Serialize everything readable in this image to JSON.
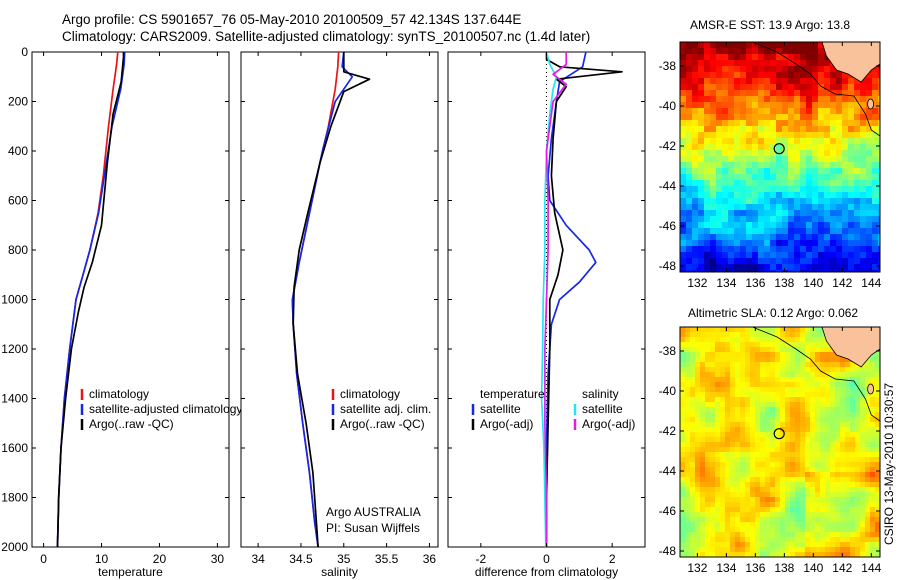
{
  "header": {
    "line1": "Argo profile: CS 5901657_76 05-May-2010 20100509_57 42.134S 137.644E",
    "line2": "Climatology: CARS2009. Satellite-adjusted climatology: synTS_20100507.nc (1.4d later)"
  },
  "maps": [
    {
      "title": "AMSR-E SST: 13.9 Argo: 13.8"
    },
    {
      "title": "Altimetric SLA: 0.12 Argo: 0.062"
    }
  ],
  "credit": "CSIRO 13-May-2010 10:30:57",
  "argo_info": {
    "line1": "Argo AUSTRALIA",
    "line2": "PI: Susan Wijffels"
  },
  "colors": {
    "red": "#e8141a",
    "blue": "#1428e8",
    "black": "#000000",
    "cyan": "#24e4f4",
    "magenta": "#e41ce4"
  },
  "chart_data": [
    {
      "type": "line",
      "xlabel": "temperature",
      "xlim": [
        -2,
        32
      ],
      "xticks": [
        0,
        10,
        20,
        30
      ],
      "ylim": [
        2000,
        0
      ],
      "yticks": [
        0,
        200,
        400,
        600,
        800,
        1000,
        1200,
        1400,
        1600,
        1800,
        2000
      ],
      "legend": [
        "climatology",
        "satellite-adjusted climatology",
        "Argo(..raw -QC)"
      ],
      "series": [
        {
          "name": "climatology",
          "color": "red",
          "points": [
            [
              12.8,
              0
            ],
            [
              12.6,
              50
            ],
            [
              12.0,
              150
            ],
            [
              11.2,
              300
            ],
            [
              10.3,
              500
            ],
            [
              9.4,
              650
            ],
            [
              8.0,
              800
            ],
            [
              6.8,
              900
            ],
            [
              5.6,
              1000
            ],
            [
              4.5,
              1200
            ],
            [
              3.6,
              1400
            ],
            [
              3.0,
              1600
            ],
            [
              2.6,
              1800
            ],
            [
              2.4,
              2000
            ]
          ]
        },
        {
          "name": "satellite-adjusted climatology",
          "color": "blue",
          "points": [
            [
              14.0,
              0
            ],
            [
              13.9,
              50
            ],
            [
              13.3,
              150
            ],
            [
              11.8,
              300
            ],
            [
              10.5,
              500
            ],
            [
              9.5,
              650
            ],
            [
              8.0,
              800
            ],
            [
              6.8,
              900
            ],
            [
              5.6,
              1000
            ],
            [
              4.5,
              1200
            ],
            [
              3.6,
              1400
            ],
            [
              3.0,
              1600
            ],
            [
              2.6,
              1800
            ],
            [
              2.4,
              2000
            ]
          ]
        },
        {
          "name": "Argo(..raw -QC)",
          "color": "black",
          "points": [
            [
              13.8,
              0
            ],
            [
              13.8,
              20
            ],
            [
              13.4,
              120
            ],
            [
              12.0,
              250
            ],
            [
              11.0,
              450
            ],
            [
              10.0,
              700
            ],
            [
              8.4,
              850
            ],
            [
              7.0,
              950
            ],
            [
              6.0,
              1050
            ],
            [
              4.8,
              1200
            ],
            [
              3.8,
              1400
            ],
            [
              3.0,
              1600
            ],
            [
              2.6,
              1800
            ],
            [
              2.4,
              2000
            ]
          ]
        }
      ]
    },
    {
      "type": "line",
      "xlabel": "salinity",
      "xlim": [
        33.8,
        36.1
      ],
      "xticks": [
        34,
        34.5,
        35,
        35.5,
        36
      ],
      "xticklabels": [
        "34",
        "34.5",
        "35",
        "35.5",
        "36"
      ],
      "ylim": [
        2000,
        0
      ],
      "yticks": [
        0,
        200,
        400,
        600,
        800,
        1000,
        1200,
        1400,
        1600,
        1800,
        2000
      ],
      "legend": [
        "climatology",
        "satellite adj. clim.",
        "Argo(..raw -QC)"
      ],
      "series": [
        {
          "name": "climatology",
          "color": "red",
          "points": [
            [
              34.94,
              0
            ],
            [
              34.93,
              60
            ],
            [
              34.9,
              150
            ],
            [
              34.82,
              300
            ],
            [
              34.72,
              450
            ],
            [
              34.6,
              650
            ],
            [
              34.48,
              850
            ],
            [
              34.4,
              1000
            ],
            [
              34.41,
              1100
            ],
            [
              34.45,
              1300
            ],
            [
              34.52,
              1500
            ],
            [
              34.6,
              1700
            ],
            [
              34.66,
              1900
            ],
            [
              34.7,
              2000
            ]
          ]
        },
        {
          "name": "satellite adj. clim.",
          "color": "blue",
          "points": [
            [
              35.0,
              0
            ],
            [
              34.98,
              60
            ],
            [
              35.1,
              100
            ],
            [
              34.9,
              200
            ],
            [
              34.75,
              400
            ],
            [
              34.6,
              650
            ],
            [
              34.48,
              850
            ],
            [
              34.4,
              1000
            ],
            [
              34.41,
              1100
            ],
            [
              34.45,
              1300
            ],
            [
              34.52,
              1500
            ],
            [
              34.6,
              1700
            ],
            [
              34.66,
              1900
            ],
            [
              34.7,
              2000
            ]
          ]
        },
        {
          "name": "Argo(..raw -QC)",
          "color": "black",
          "points": [
            [
              35.0,
              0
            ],
            [
              35.0,
              80
            ],
            [
              35.3,
              110
            ],
            [
              35.0,
              160
            ],
            [
              34.85,
              300
            ],
            [
              34.72,
              450
            ],
            [
              34.58,
              650
            ],
            [
              34.48,
              800
            ],
            [
              34.42,
              950
            ],
            [
              34.41,
              1100
            ],
            [
              34.46,
              1300
            ],
            [
              34.56,
              1500
            ],
            [
              34.64,
              1700
            ],
            [
              34.68,
              1900
            ],
            [
              34.7,
              2000
            ]
          ]
        }
      ]
    },
    {
      "type": "line",
      "xlabel": "difference from climatology",
      "xlim": [
        -3.0,
        3.0
      ],
      "xticks": [
        -2,
        0,
        2
      ],
      "ylim": [
        2000,
        0
      ],
      "yticks": [
        0,
        200,
        400,
        600,
        800,
        1000,
        1200,
        1400,
        1600,
        1800,
        2000
      ],
      "legend_left_title": "temperature",
      "legend_right_title": "salinity",
      "legend": [
        "satellite",
        "Argo(-adj)",
        "satellite",
        "Argo(-adj)"
      ],
      "series": [
        {
          "name": "temperature satellite",
          "color": "blue",
          "points": [
            [
              1.2,
              0
            ],
            [
              1.1,
              60
            ],
            [
              0.4,
              120
            ],
            [
              0.3,
              200
            ],
            [
              0.15,
              350
            ],
            [
              0.05,
              500
            ],
            [
              0.1,
              600
            ],
            [
              0.6,
              700
            ],
            [
              1.3,
              800
            ],
            [
              1.5,
              850
            ],
            [
              1.0,
              930
            ],
            [
              0.4,
              1000
            ],
            [
              0.15,
              1100
            ],
            [
              0.05,
              1300
            ],
            [
              0.0,
              1600
            ],
            [
              0.0,
              2000
            ]
          ]
        },
        {
          "name": "temperature Argo(-adj)",
          "color": "black",
          "points": [
            [
              0.0,
              0
            ],
            [
              0.0,
              30
            ],
            [
              0.4,
              60
            ],
            [
              2.3,
              80
            ],
            [
              0.3,
              110
            ],
            [
              0.6,
              140
            ],
            [
              0.3,
              200
            ],
            [
              0.2,
              350
            ],
            [
              0.15,
              500
            ],
            [
              0.25,
              650
            ],
            [
              0.5,
              800
            ],
            [
              0.35,
              900
            ],
            [
              0.1,
              1000
            ],
            [
              0.1,
              1200
            ],
            [
              0.05,
              1500
            ],
            [
              0.0,
              1800
            ],
            [
              0.0,
              2000
            ]
          ]
        },
        {
          "name": "salinity satellite",
          "color": "cyan",
          "points": [
            [
              0.0,
              0
            ],
            [
              0.1,
              50
            ],
            [
              0.3,
              100
            ],
            [
              0.2,
              150
            ],
            [
              0.1,
              250
            ],
            [
              0.0,
              400
            ],
            [
              -0.05,
              600
            ],
            [
              -0.05,
              800
            ],
            [
              -0.1,
              1000
            ],
            [
              -0.12,
              1200
            ],
            [
              -0.15,
              1400
            ],
            [
              -0.08,
              1600
            ],
            [
              -0.05,
              1800
            ],
            [
              -0.02,
              2000
            ]
          ]
        },
        {
          "name": "salinity Argo(-adj)",
          "color": "magenta",
          "points": [
            [
              0.6,
              0
            ],
            [
              0.6,
              50
            ],
            [
              0.2,
              90
            ],
            [
              0.6,
              130
            ],
            [
              0.2,
              200
            ],
            [
              0.0,
              400
            ],
            [
              0.05,
              600
            ],
            [
              0.05,
              800
            ],
            [
              0.0,
              1000
            ],
            [
              -0.05,
              1200
            ],
            [
              -0.05,
              1500
            ],
            [
              0.0,
              1800
            ],
            [
              0.0,
              2000
            ]
          ]
        }
      ]
    },
    {
      "type": "heatmap",
      "title": "AMSR-E SST: 13.9 Argo: 13.8",
      "xlim": [
        130.8,
        144.6
      ],
      "ylim": [
        -48.3,
        -36.8
      ],
      "xticks": [
        132,
        134,
        136,
        138,
        140,
        142,
        144
      ],
      "yticks": [
        -38,
        -40,
        -42,
        -44,
        -46,
        -48
      ],
      "marker": {
        "lon": 137.644,
        "lat": -42.134
      },
      "color_gradient_note": "warm north, cold south"
    },
    {
      "type": "heatmap",
      "title": "Altimetric SLA: 0.12 Argo: 0.062",
      "xlim": [
        130.8,
        144.6
      ],
      "ylim": [
        -48.3,
        -36.8
      ],
      "xticks": [
        132,
        134,
        136,
        138,
        140,
        142,
        144
      ],
      "yticks": [
        -38,
        -40,
        -42,
        -44,
        -46,
        -48
      ],
      "marker": {
        "lon": 137.644,
        "lat": -42.134
      }
    }
  ]
}
